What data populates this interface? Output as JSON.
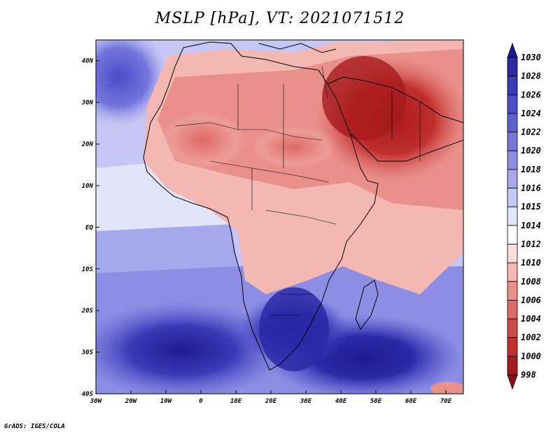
{
  "title": "MSLP [hPa], VT: 2021071512",
  "credit": "GrADS: IGES/COLA",
  "map": {
    "projection": "lat-lon",
    "lon_range": [
      -30,
      75
    ],
    "lat_range": [
      -40,
      45
    ],
    "lon_ticks": [
      {
        "value": -30,
        "label": "30W"
      },
      {
        "value": -20,
        "label": "20W"
      },
      {
        "value": -10,
        "label": "10W"
      },
      {
        "value": 0,
        "label": "0"
      },
      {
        "value": 10,
        "label": "10E"
      },
      {
        "value": 20,
        "label": "20E"
      },
      {
        "value": 30,
        "label": "30E"
      },
      {
        "value": 40,
        "label": "40E"
      },
      {
        "value": 50,
        "label": "50E"
      },
      {
        "value": 60,
        "label": "60E"
      },
      {
        "value": 70,
        "label": "70E"
      }
    ],
    "lat_ticks": [
      {
        "value": 40,
        "label": "40N"
      },
      {
        "value": 30,
        "label": "30N"
      },
      {
        "value": 20,
        "label": "20N"
      },
      {
        "value": 10,
        "label": "10N"
      },
      {
        "value": 0,
        "label": "EQ"
      },
      {
        "value": -10,
        "label": "10S"
      },
      {
        "value": -20,
        "label": "20S"
      },
      {
        "value": -30,
        "label": "30S"
      },
      {
        "value": -40,
        "label": "40S"
      }
    ],
    "field": "mean sea level pressure"
  },
  "colorbar": {
    "orientation": "vertical",
    "labels": [
      "1030",
      "1028",
      "1026",
      "1024",
      "1022",
      "1020",
      "1018",
      "1016",
      "1015",
      "1014",
      "1012",
      "1010",
      "1008",
      "1006",
      "1004",
      "1002",
      "1000",
      "998"
    ],
    "colors": [
      "#1e1a94",
      "#2a2aa8",
      "#3a3ab8",
      "#4a4cc8",
      "#5e60d2",
      "#7476dc",
      "#8c8ee4",
      "#a6a8ec",
      "#c4c6f4",
      "#e2e4fa",
      "#ffffff",
      "#fadcd8",
      "#f4b8b2",
      "#ea908a",
      "#de6a66",
      "#d04a48",
      "#c02e2e",
      "#a61a1e",
      "#8c1014"
    ]
  }
}
